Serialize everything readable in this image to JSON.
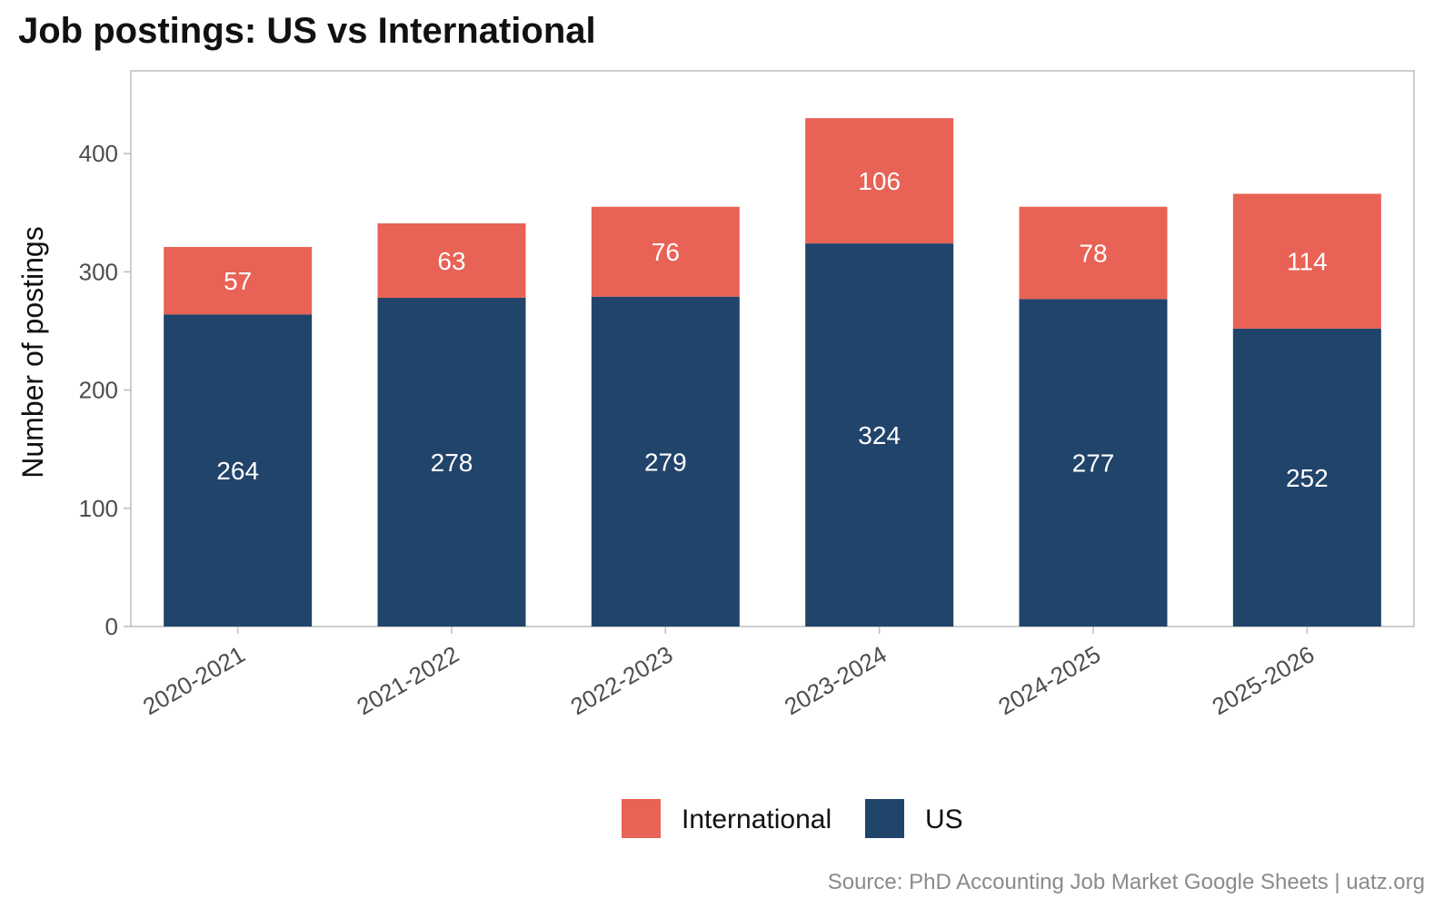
{
  "chart_data": {
    "type": "bar",
    "stacked": true,
    "title": "Job postings: US vs International",
    "ylabel": "Number of postings",
    "xlabel": "",
    "categories": [
      "2020-2021",
      "2021-2022",
      "2022-2023",
      "2023-2024",
      "2024-2025",
      "2025-2026"
    ],
    "series": [
      {
        "name": "US",
        "color": "#21446b",
        "values": [
          264,
          278,
          279,
          324,
          277,
          252
        ]
      },
      {
        "name": "International",
        "color": "#e86255",
        "values": [
          57,
          63,
          76,
          106,
          78,
          114
        ]
      }
    ],
    "ylim": [
      0,
      470
    ],
    "yticks": [
      0,
      100,
      200,
      300,
      400
    ],
    "legend": {
      "position": "bottom",
      "order": [
        "International",
        "US"
      ]
    },
    "grid": false,
    "source": "Source: PhD Accounting Job Market Google Sheets | uatz.org"
  }
}
